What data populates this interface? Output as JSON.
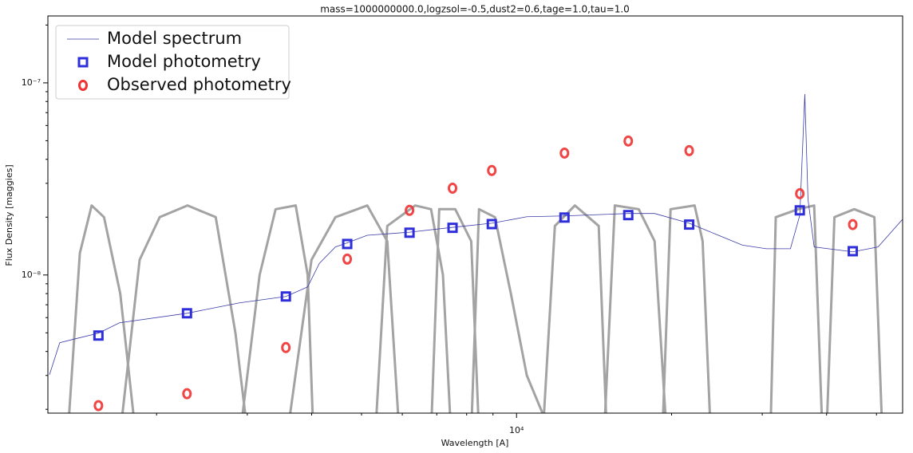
{
  "chart_data": {
    "type": "line",
    "title": "mass=1000000000.0,logzsol=-0.5,dust2=0.6,tage=1.0,tau=1.0",
    "xlabel": "Wavelength [A]",
    "ylabel": "Flux Density [maggies]",
    "xscale": "log",
    "yscale": "log",
    "xlim": [
      1230,
      56200
    ],
    "ylim": [
      1.91e-09,
      2.23e-07
    ],
    "xticks": [
      {
        "value": 10000,
        "label": "10⁴"
      }
    ],
    "yticks": [
      {
        "value": 1e-08,
        "label": "10⁻⁸"
      },
      {
        "value": 1e-07,
        "label": "10⁻⁷"
      }
    ],
    "xminorticks": [
      2000,
      3000,
      4000,
      5000,
      6000,
      7000,
      8000,
      9000,
      20000,
      30000,
      40000,
      50000
    ],
    "yminorticks": [
      2e-09,
      3e-09,
      4e-09,
      5e-09,
      6e-09,
      7e-09,
      8e-09,
      9e-09,
      2e-08,
      3e-08,
      4e-08,
      5e-08,
      6e-08,
      7e-08,
      8e-08,
      9e-08,
      2e-07
    ],
    "legend": "upper left",
    "series": [
      {
        "name": "Model spectrum",
        "kind": "line",
        "color": "#3a3aa8",
        "x": [
          1239,
          1297,
          1393,
          1542,
          1694,
          2291,
          2897,
          3565,
          3930,
          4141,
          4450,
          4690,
          5130,
          6197,
          7511,
          8953,
          10470,
          12390,
          16480,
          18540,
          21640,
          24660,
          27460,
          30560,
          34030,
          35490,
          36290,
          36810,
          37840,
          44970,
          50350,
          56200
        ],
        "values": [
          3.03e-09,
          4.44e-09,
          4.66e-09,
          4.98e-09,
          5.64e-09,
          6.32e-09,
          7.16e-09,
          7.73e-09,
          8.67e-09,
          1.15e-08,
          1.4e-08,
          1.47e-08,
          1.61e-08,
          1.67e-08,
          1.77e-08,
          1.86e-08,
          2.01e-08,
          2.03e-08,
          2.09e-08,
          2.09e-08,
          1.86e-08,
          1.61e-08,
          1.43e-08,
          1.37e-08,
          1.37e-08,
          2.05e-08,
          8.75e-08,
          2.48e-08,
          1.4e-08,
          1.32e-08,
          1.4e-08,
          1.95e-08
        ]
      },
      {
        "name": "Model photometry",
        "kind": "square",
        "color": "#2e2edb",
        "x": [
          1542,
          2291,
          3565,
          4690,
          6197,
          7511,
          8953,
          12390,
          16480,
          21640,
          35490,
          44970
        ],
        "values": [
          4.84e-09,
          6.32e-09,
          7.73e-09,
          1.45e-08,
          1.66e-08,
          1.76e-08,
          1.84e-08,
          1.99e-08,
          2.05e-08,
          1.83e-08,
          2.17e-08,
          1.33e-08
        ]
      },
      {
        "name": "Observed photometry",
        "kind": "circle",
        "color": "#f03232",
        "x": [
          1542,
          2291,
          3565,
          4690,
          6197,
          7511,
          8953,
          12390,
          16480,
          21640,
          35490,
          44970
        ],
        "values": [
          2.09e-09,
          2.41e-09,
          4.19e-09,
          1.21e-08,
          2.17e-08,
          2.83e-08,
          3.5e-08,
          4.31e-08,
          4.98e-08,
          4.44e-08,
          2.65e-08,
          1.83e-08
        ]
      }
    ],
    "filter_color": "#a3a3a3",
    "filters": [
      {
        "x": [
          1345,
          1419,
          1496,
          1581,
          1700,
          1820
        ],
        "values": [
          1.5e-09,
          1.3e-08,
          2.3e-08,
          2e-08,
          8e-09,
          1.5e-09
        ]
      },
      {
        "x": [
          1700,
          1854,
          2028,
          2297,
          2605,
          2845,
          3004
        ],
        "values": [
          1.5e-09,
          1.2e-08,
          2e-08,
          2.3e-08,
          2e-08,
          5e-09,
          1.5e-09
        ]
      },
      {
        "x": [
          2907,
          3170,
          3405,
          3725,
          3930,
          4030
        ],
        "values": [
          1.5e-09,
          1e-08,
          2.2e-08,
          2.3e-08,
          1e-08,
          1.5e-09
        ]
      },
      {
        "x": [
          3590,
          3998,
          4450,
          5130,
          5610,
          5920
        ],
        "values": [
          1.5e-09,
          1.2e-08,
          2e-08,
          2.3e-08,
          1.5e-08,
          1.5e-09
        ]
      },
      {
        "x": [
          5320,
          5610,
          6356,
          6823,
          7196,
          7460
        ],
        "values": [
          1.5e-09,
          1.8e-08,
          2.3e-08,
          2.2e-08,
          1e-08,
          1.5e-09
        ]
      },
      {
        "x": [
          6823,
          7077,
          7603,
          8165,
          8455
        ],
        "values": [
          1.5e-09,
          2.2e-08,
          2.2e-08,
          1.5e-08,
          1.5e-09
        ]
      },
      {
        "x": [
          8165,
          8455,
          9080,
          9750,
          10470,
          11660
        ],
        "values": [
          1.5e-09,
          2.2e-08,
          2e-08,
          8e-09,
          3e-09,
          1.5e-09
        ]
      },
      {
        "x": [
          11250,
          11870,
          12980,
          14440,
          14970
        ],
        "values": [
          1.5e-09,
          1.8e-08,
          2.3e-08,
          1.8e-08,
          1.5e-09
        ]
      },
      {
        "x": [
          14800,
          15520,
          17270,
          18540,
          19560
        ],
        "values": [
          1.5e-09,
          2.3e-08,
          2.2e-08,
          1.5e-08,
          1.5e-09
        ]
      },
      {
        "x": [
          19200,
          19910,
          22170,
          22980,
          23820
        ],
        "values": [
          1.5e-09,
          2.2e-08,
          2.3e-08,
          1.5e-08,
          1.5e-09
        ]
      },
      {
        "x": [
          31120,
          31870,
          35220,
          37840,
          39260
        ],
        "values": [
          1.5e-09,
          2e-08,
          2.2e-08,
          2.3e-08,
          1.5e-09
        ]
      },
      {
        "x": [
          39990,
          41430,
          45270,
          49530,
          51320
        ],
        "values": [
          1.5e-09,
          2e-08,
          2.2e-08,
          2e-08,
          1.5e-09
        ]
      }
    ]
  }
}
